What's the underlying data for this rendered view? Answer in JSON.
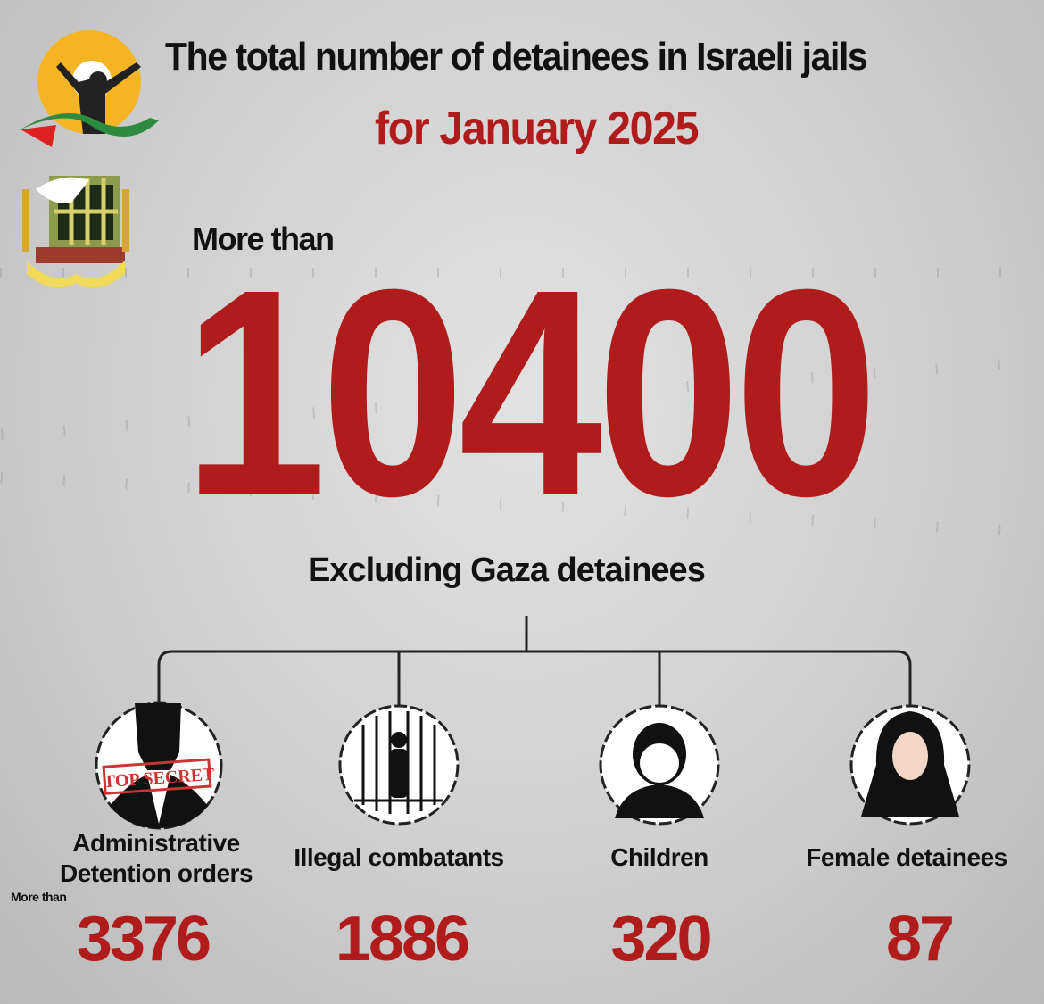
{
  "header": {
    "title": "The total number of detainees in Israeli jails",
    "subtitle": "for January 2025",
    "logos": [
      "Commission of Detainees and Ex-Detainees Affairs logo",
      "Palestinian Prisoners Club logo"
    ]
  },
  "headline": {
    "prefix": "More than",
    "total": "10400",
    "note": "Excluding Gaza detainees"
  },
  "categories": [
    {
      "label_line1": "Administrative",
      "label_line2": "Detention orders",
      "prefix": "More than",
      "value": "3376",
      "icon": "top-secret-silhouette-icon",
      "stamp": "TOP SECRET"
    },
    {
      "label_line1": "Illegal combatants",
      "value": "1886",
      "icon": "prisoner-behind-bars-icon"
    },
    {
      "label_line1": "Children",
      "value": "320",
      "icon": "child-icon"
    },
    {
      "label_line1": "Female detainees",
      "value": "87",
      "icon": "veiled-woman-icon"
    }
  ],
  "colors": {
    "accent": "#b01c1c",
    "text": "#111111",
    "background": "#d0d0d0"
  }
}
